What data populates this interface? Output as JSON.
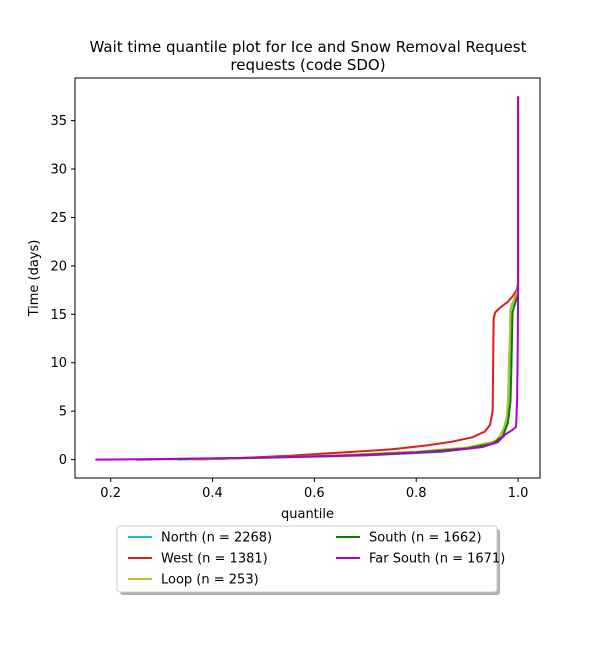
{
  "chart_data": {
    "type": "line",
    "title_line1": "Wait time quantile plot for Ice and Snow Removal Request",
    "title_line2": "requests (code SDO)",
    "xlabel": "quantile",
    "ylabel": "Time (days)",
    "xlim": [
      0.13,
      1.043
    ],
    "ylim": [
      -1.9,
      39.4
    ],
    "xticks": [
      0.2,
      0.4,
      0.6,
      0.8,
      1.0
    ],
    "xtick_labels": [
      "0.2",
      "0.4",
      "0.6",
      "0.8",
      "1.0"
    ],
    "yticks": [
      0,
      5,
      10,
      15,
      20,
      25,
      30,
      35
    ],
    "ytick_labels": [
      "0",
      "5",
      "10",
      "15",
      "20",
      "25",
      "30",
      "35"
    ],
    "grid": false,
    "legend_placement": "below plot, two columns",
    "series": [
      {
        "name": "North (n = 2268)",
        "color": "#17becf",
        "points": [
          [
            0.33,
            0
          ],
          [
            0.5,
            0.18
          ],
          [
            0.7,
            0.42
          ],
          [
            0.85,
            0.8
          ],
          [
            0.93,
            1.3
          ],
          [
            0.96,
            2.0
          ],
          [
            0.975,
            3.5
          ],
          [
            0.98,
            5
          ],
          [
            0.983,
            10
          ],
          [
            0.985,
            15.5
          ],
          [
            0.99,
            16.2
          ],
          [
            0.995,
            16.8
          ],
          [
            1.0,
            17.5
          ]
        ]
      },
      {
        "name": "West (n = 1381)",
        "color": "#e31a1c",
        "points": [
          [
            0.37,
            0
          ],
          [
            0.45,
            0.15
          ],
          [
            0.55,
            0.4
          ],
          [
            0.65,
            0.72
          ],
          [
            0.75,
            1.05
          ],
          [
            0.82,
            1.45
          ],
          [
            0.87,
            1.85
          ],
          [
            0.91,
            2.3
          ],
          [
            0.935,
            2.9
          ],
          [
            0.945,
            3.6
          ],
          [
            0.95,
            5
          ],
          [
            0.951,
            10
          ],
          [
            0.952,
            14.6
          ],
          [
            0.955,
            15.2
          ],
          [
            0.965,
            15.7
          ],
          [
            0.98,
            16.3
          ],
          [
            0.99,
            16.9
          ],
          [
            0.998,
            17.6
          ],
          [
            1.0,
            18.2
          ],
          [
            1.0,
            37.5
          ]
        ]
      },
      {
        "name": "Loop (n = 253)",
        "color": "#bcbd22",
        "points": [
          [
            0.36,
            0
          ],
          [
            0.5,
            0.22
          ],
          [
            0.65,
            0.45
          ],
          [
            0.8,
            0.82
          ],
          [
            0.9,
            1.25
          ],
          [
            0.955,
            1.9
          ],
          [
            0.97,
            2.8
          ],
          [
            0.978,
            4.5
          ],
          [
            0.98,
            6
          ],
          [
            0.982,
            10
          ],
          [
            0.986,
            15.8
          ],
          [
            0.99,
            16.3
          ],
          [
            0.995,
            16.9
          ],
          [
            1.0,
            17.6
          ]
        ]
      },
      {
        "name": "South (n = 1662)",
        "color": "#008000",
        "points": [
          [
            0.25,
            0
          ],
          [
            0.45,
            0.15
          ],
          [
            0.65,
            0.4
          ],
          [
            0.8,
            0.75
          ],
          [
            0.9,
            1.15
          ],
          [
            0.95,
            1.65
          ],
          [
            0.97,
            2.4
          ],
          [
            0.98,
            3.8
          ],
          [
            0.985,
            6
          ],
          [
            0.987,
            10
          ],
          [
            0.989,
            15.2
          ],
          [
            0.992,
            15.8
          ],
          [
            0.996,
            16.4
          ],
          [
            1.0,
            17.1
          ]
        ]
      },
      {
        "name": "Far South (n = 1671)",
        "color": "#b000c8",
        "points": [
          [
            0.17,
            0
          ],
          [
            0.3,
            0.06
          ],
          [
            0.5,
            0.2
          ],
          [
            0.7,
            0.45
          ],
          [
            0.85,
            0.85
          ],
          [
            0.93,
            1.3
          ],
          [
            0.96,
            1.8
          ],
          [
            0.975,
            2.6
          ],
          [
            0.99,
            3.1
          ],
          [
            0.996,
            3.4
          ],
          [
            0.998,
            6
          ],
          [
            0.999,
            10
          ],
          [
            1.0,
            17
          ],
          [
            1.0,
            37.5
          ]
        ]
      }
    ]
  }
}
